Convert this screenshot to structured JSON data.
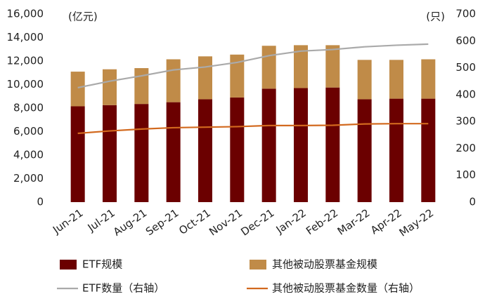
{
  "chart_data": {
    "type": "bar",
    "y_label": "(亿元)",
    "y2_label": "(只)",
    "categories": [
      "Jun-21",
      "Jul-21",
      "Aug-21",
      "Sep-21",
      "Oct-21",
      "Nov-21",
      "Dec-21",
      "Jan-22",
      "Feb-22",
      "Mar-22",
      "Apr-22",
      "May-22"
    ],
    "series": [
      {
        "name": "ETF规模",
        "type": "bar",
        "color": "#6b0000",
        "values": [
          8150,
          8250,
          8350,
          8500,
          8750,
          8900,
          9650,
          9700,
          9750,
          8750,
          8800,
          8800
        ]
      },
      {
        "name": "其他被动股票基金规模",
        "type": "bar",
        "color": "#c08b48",
        "values": [
          2950,
          3050,
          3050,
          3650,
          3650,
          3650,
          3650,
          3650,
          3600,
          3350,
          3300,
          3350
        ]
      },
      {
        "name": "ETF数量（右轴）",
        "type": "line",
        "axis": "y2",
        "color": "#aaaaaa",
        "values": [
          426,
          450,
          470,
          492,
          503,
          520,
          545,
          562,
          568,
          578,
          584,
          588
        ]
      },
      {
        "name": "其他被动股票基金数量（右轴）",
        "type": "line",
        "axis": "y2",
        "color": "#d2691e",
        "values": [
          256,
          265,
          272,
          277,
          279,
          281,
          285,
          285,
          286,
          291,
          292,
          292
        ]
      }
    ],
    "ylim": [
      0,
      16000
    ],
    "yticks": [
      0,
      {
        "value": 2000,
        "label": "2,000"
      },
      {
        "value": 4000,
        "label": "4,000"
      },
      {
        "value": 6000,
        "label": "6,000"
      },
      {
        "value": 8000,
        "label": "8,000"
      },
      {
        "value": 10000,
        "label": "10,000"
      },
      {
        "value": 12000,
        "label": "12,000"
      },
      {
        "value": 14000,
        "label": "14,000"
      },
      {
        "value": 16000,
        "label": "16,000"
      }
    ],
    "y2lim": [
      0,
      700
    ],
    "y2ticks": [
      0,
      100,
      200,
      300,
      400,
      500,
      600,
      700
    ]
  }
}
